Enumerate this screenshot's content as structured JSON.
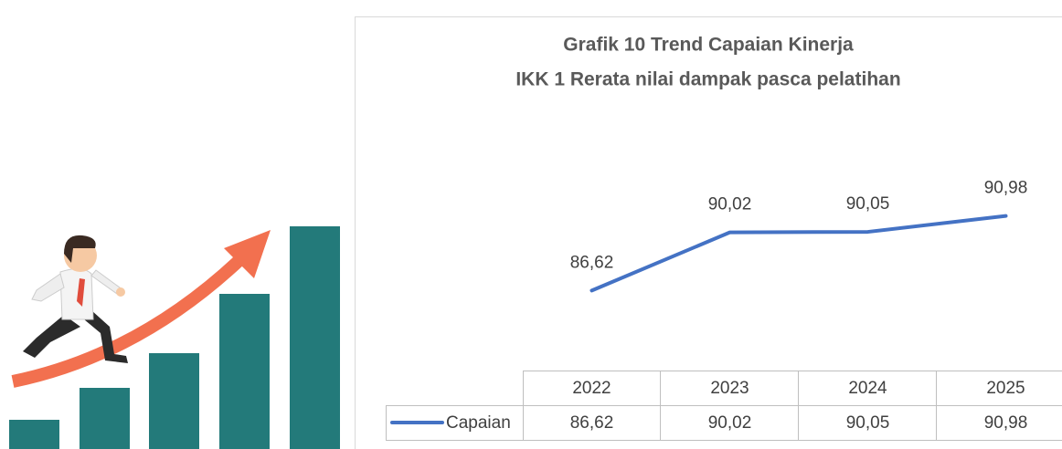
{
  "chart_data": {
    "type": "line",
    "title": [
      "Grafik 10 Trend Capaian Kinerja",
      "IKK 1 Rerata  nilai dampak pasca pelatihan"
    ],
    "categories": [
      "2022",
      "2023",
      "2024",
      "2025"
    ],
    "series": [
      {
        "name": "Capaian",
        "color": "#4472c4",
        "values": [
          86.62,
          90.02,
          90.05,
          90.98
        ],
        "value_labels": [
          "86,62",
          "90,02",
          "90,05",
          "90,98"
        ]
      }
    ],
    "ylim": [
      82,
      98
    ]
  }
}
